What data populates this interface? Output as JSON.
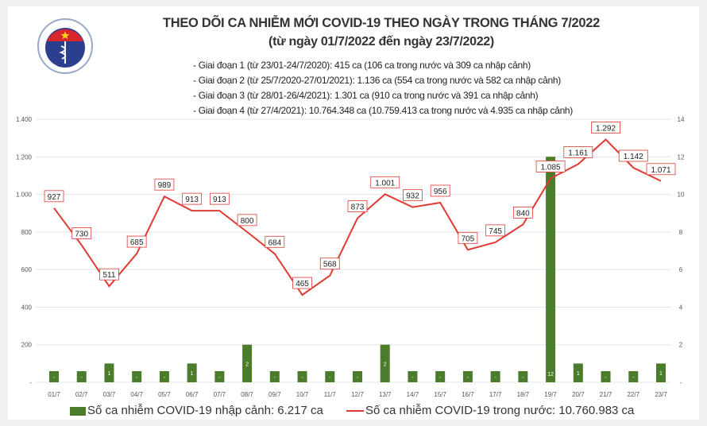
{
  "header": {
    "title": "THEO DÕI CA NHIỄM MỚI COVID-19 THEO NGÀY TRONG THÁNG 7/2022",
    "subtitle": "(từ ngày 01/7/2022 đến ngày 23/7/2022)",
    "notes": [
      "- Giai đoạn 1 (từ 23/01-24/7/2020): 415 ca (106 ca trong nước và 309 ca nhập cảnh)",
      "- Giai đoạn 2 (từ 25/7/2020-27/01/2021): 1.136 ca (554 ca trong nước và 582 ca nhập cảnh)",
      "- Giai đoạn 3 (từ 28/01-26/4/2021): 1.301 ca (910 ca trong nước và 391 ca nhập cảnh)",
      "- Giai đoạn 4 (từ 27/4/2021): 10.764.348 ca (10.759.413 ca trong nước và 4.935 ca nhập cảnh)"
    ],
    "logo_text": "BỘ Y TẾ · MINISTRY OF HEALTH"
  },
  "chart_data": {
    "type": "bar+line",
    "categories": [
      "01/7",
      "02/7",
      "03/7",
      "04/7",
      "05/7",
      "06/7",
      "07/7",
      "08/7",
      "09/7",
      "10/7",
      "11/7",
      "12/7",
      "13/7",
      "14/7",
      "15/7",
      "16/7",
      "17/7",
      "18/7",
      "19/7",
      "20/7",
      "21/7",
      "22/7",
      "23/7"
    ],
    "series": [
      {
        "name": "Số ca nhiễm COVID-19 nhập cảnh: 6.217 ca",
        "type": "bar",
        "axis": "right",
        "color": "#4a7c2c",
        "values": [
          0,
          0,
          1,
          0,
          0,
          1,
          0,
          2,
          0,
          0,
          0,
          0,
          2,
          0,
          0,
          0,
          0,
          0,
          12,
          1,
          0,
          0,
          1
        ],
        "labels": [
          "-",
          "-",
          "1",
          "-",
          "-",
          "1",
          "-",
          "2",
          "-",
          "-",
          "-",
          "-",
          "2",
          "-",
          "-",
          "-",
          "-",
          "-",
          "12",
          "1",
          "-",
          "-",
          "1"
        ]
      },
      {
        "name": "Số ca nhiễm COVID-19 trong nước: 10.760.983 ca",
        "type": "line",
        "axis": "left",
        "color": "#e03a33",
        "values": [
          927,
          730,
          511,
          685,
          989,
          913,
          913,
          800,
          684,
          465,
          568,
          873,
          1001,
          932,
          956,
          705,
          745,
          840,
          1085,
          1161,
          1292,
          1142,
          1071
        ],
        "labels": [
          "927",
          "730",
          "511",
          "685",
          "989",
          "913",
          "913",
          "800",
          "684",
          "465",
          "568",
          "873",
          "1.001",
          "932",
          "956",
          "705",
          "745",
          "840",
          "1.085",
          "1.161",
          "1.292",
          "1.142",
          "1.071"
        ]
      }
    ],
    "left_axis": {
      "ylim": [
        0,
        1400
      ],
      "ticks": [
        "-",
        "200",
        "400",
        "600",
        "800",
        "1.000",
        "1.200",
        "1.400"
      ]
    },
    "right_axis": {
      "ylim": [
        0,
        14
      ],
      "ticks": [
        "-",
        "2",
        "4",
        "6",
        "8",
        "10",
        "12",
        "14"
      ]
    },
    "grid": true,
    "legend": "bottom"
  }
}
